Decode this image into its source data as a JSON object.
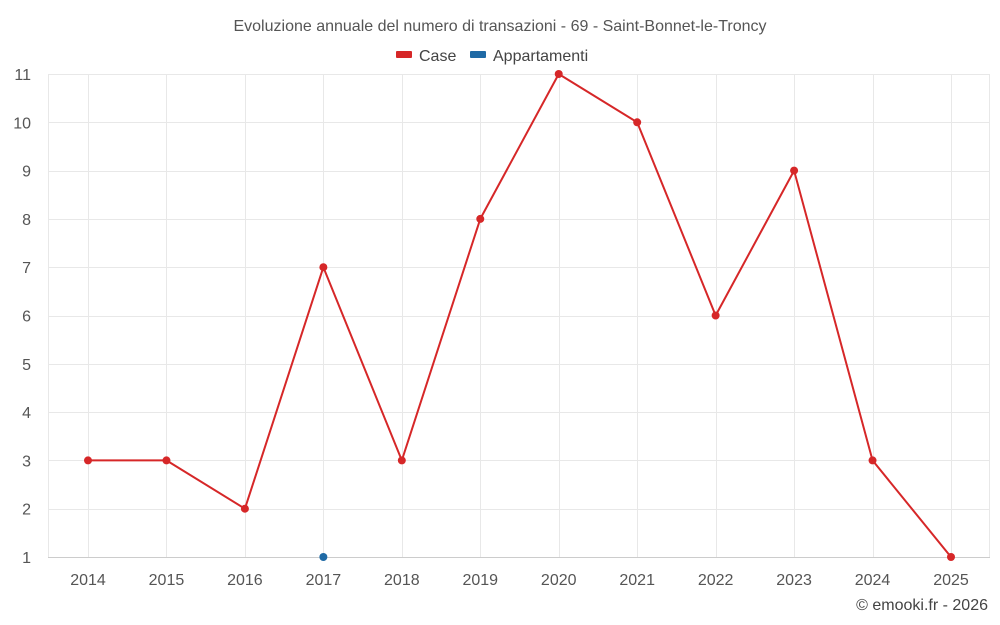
{
  "chart_data": {
    "type": "line",
    "title": "Evoluzione annuale del numero di transazioni - 69 - Saint-Bonnet-le-Troncy",
    "categories": [
      "2014",
      "2015",
      "2016",
      "2017",
      "2018",
      "2019",
      "2020",
      "2021",
      "2022",
      "2023",
      "2024",
      "2025"
    ],
    "series": [
      {
        "name": "Case",
        "color": "#d62728",
        "values": [
          3,
          3,
          2,
          7,
          3,
          8,
          11,
          10,
          6,
          9,
          3,
          1
        ]
      },
      {
        "name": "Appartamenti",
        "color": "#1f6aa5",
        "values": [
          null,
          null,
          null,
          1,
          null,
          null,
          null,
          null,
          null,
          null,
          null,
          null
        ]
      }
    ],
    "ylim": [
      1,
      11
    ],
    "yticks": [
      1,
      2,
      3,
      4,
      5,
      6,
      7,
      8,
      9,
      10,
      11
    ],
    "grid": true,
    "legend": "top-center",
    "xlabel": "",
    "ylabel": ""
  },
  "credit": "© emooki.fr - 2026"
}
